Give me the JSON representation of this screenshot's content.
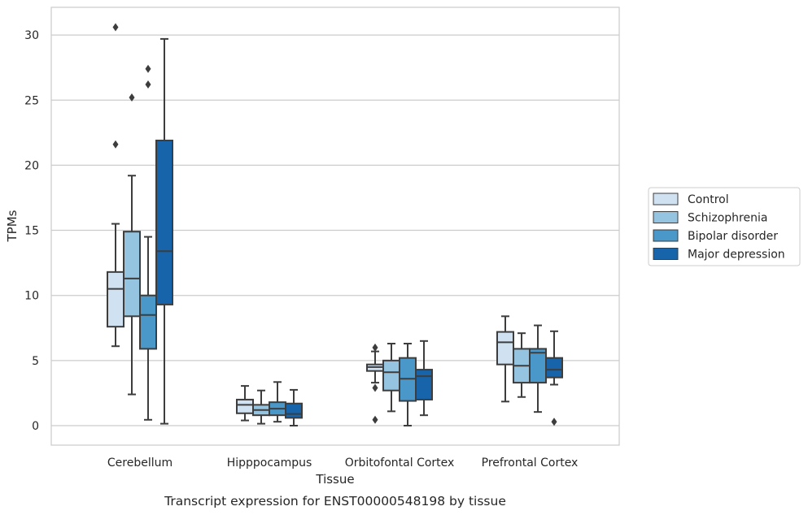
{
  "chart_data": {
    "type": "box",
    "caption": "Transcript expression for ENST00000548198 by tissue",
    "xlabel": "Tissue",
    "ylabel": "TPMs",
    "ylim": [
      -1.5,
      32.2
    ],
    "yticks": [
      0,
      5,
      10,
      15,
      20,
      25,
      30
    ],
    "grid": "horizontal",
    "legend_position": "right",
    "categories": [
      "Cerebellum",
      "Hipppocampus",
      "Orbitofontal Cortex",
      "Prefrontal Cortex"
    ],
    "series": [
      {
        "name": "Control",
        "color": "#d0e1f2",
        "boxes": [
          {
            "whislo": 6.1,
            "q1": 7.6,
            "med": 10.5,
            "q3": 11.8,
            "whishi": 15.5,
            "fliers": [
              21.6,
              30.6
            ]
          },
          {
            "whislo": 0.4,
            "q1": 0.95,
            "med": 1.6,
            "q3": 2.0,
            "whishi": 3.05,
            "fliers": []
          },
          {
            "whislo": 3.3,
            "q1": 4.2,
            "med": 4.5,
            "q3": 4.7,
            "whishi": 5.7,
            "fliers": [
              6.0,
              2.9,
              0.45
            ]
          },
          {
            "whislo": 1.85,
            "q1": 4.7,
            "med": 6.4,
            "q3": 7.2,
            "whishi": 8.4,
            "fliers": []
          }
        ]
      },
      {
        "name": "Schizophrenia",
        "color": "#94c4df",
        "boxes": [
          {
            "whislo": 2.4,
            "q1": 8.4,
            "med": 11.3,
            "q3": 14.9,
            "whishi": 19.2,
            "fliers": [
              25.2
            ]
          },
          {
            "whislo": 0.15,
            "q1": 0.8,
            "med": 1.2,
            "q3": 1.6,
            "whishi": 2.7,
            "fliers": []
          },
          {
            "whislo": 1.1,
            "q1": 2.7,
            "med": 4.1,
            "q3": 5.0,
            "whishi": 6.3,
            "fliers": []
          },
          {
            "whislo": 2.2,
            "q1": 3.3,
            "med": 4.6,
            "q3": 5.9,
            "whishi": 7.1,
            "fliers": []
          }
        ]
      },
      {
        "name": "Bipolar disorder",
        "color": "#4a98c9",
        "boxes": [
          {
            "whislo": 0.45,
            "q1": 5.9,
            "med": 8.5,
            "q3": 10.0,
            "whishi": 14.5,
            "fliers": [
              26.2,
              27.4
            ]
          },
          {
            "whislo": 0.3,
            "q1": 0.8,
            "med": 1.3,
            "q3": 1.8,
            "whishi": 3.35,
            "fliers": []
          },
          {
            "whislo": 0.0,
            "q1": 1.9,
            "med": 3.6,
            "q3": 5.2,
            "whishi": 6.3,
            "fliers": []
          },
          {
            "whislo": 1.05,
            "q1": 3.3,
            "med": 5.6,
            "q3": 5.9,
            "whishi": 7.7,
            "fliers": []
          }
        ]
      },
      {
        "name": "Major depression",
        "color": "#1764ab",
        "boxes": [
          {
            "whislo": 0.15,
            "q1": 9.3,
            "med": 13.4,
            "q3": 21.9,
            "whishi": 29.7,
            "fliers": []
          },
          {
            "whislo": 0.0,
            "q1": 0.6,
            "med": 0.9,
            "q3": 1.7,
            "whishi": 2.75,
            "fliers": []
          },
          {
            "whislo": 0.8,
            "q1": 2.0,
            "med": 3.8,
            "q3": 4.3,
            "whishi": 6.5,
            "fliers": []
          },
          {
            "whislo": 3.15,
            "q1": 3.7,
            "med": 4.3,
            "q3": 5.2,
            "whishi": 7.25,
            "fliers": [
              0.3
            ]
          }
        ]
      }
    ]
  }
}
